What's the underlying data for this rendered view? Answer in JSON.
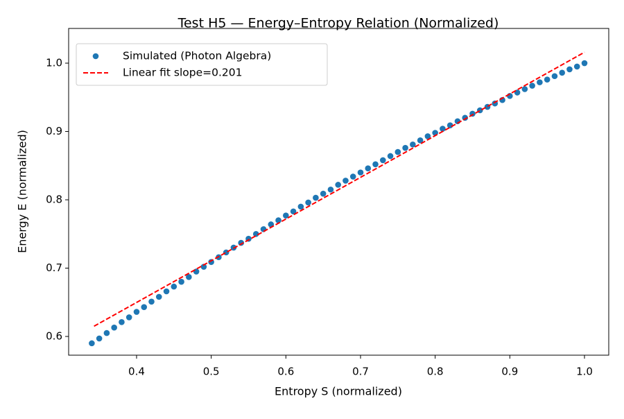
{
  "chart_data": {
    "type": "scatter",
    "title": "Test H5 — Energy–Entropy Relation (Normalized)",
    "x_label": "Entropy S (normalized)",
    "y_label": "Energy E (normalized)",
    "xlim": [
      0.309,
      1.0325
    ],
    "ylim": [
      0.5726,
      1.0508
    ],
    "xticks": [
      0.4,
      0.5,
      0.6,
      0.7,
      0.8,
      0.9,
      {
        "value": 1.0,
        "label": "1.0"
      }
    ],
    "yticks": [
      0.6,
      0.7,
      0.8,
      0.9,
      {
        "value": 1.0,
        "label": "1.0"
      }
    ],
    "grid": false,
    "legend": "upper left",
    "series": [
      {
        "name": "Simulated (Photon Algebra)",
        "color": "#1f77b4",
        "marker": "o",
        "linestyle": "none",
        "x": [
          0.34,
          0.35,
          0.36,
          0.37,
          0.38,
          0.39,
          0.4,
          0.41,
          0.42,
          0.43,
          0.44,
          0.45,
          0.46,
          0.47,
          0.48,
          0.49,
          0.5,
          0.51,
          0.52,
          0.53,
          0.54,
          0.55,
          0.56,
          0.57,
          0.58,
          0.59,
          0.6,
          0.61,
          0.62,
          0.63,
          0.64,
          0.65,
          0.66,
          0.67,
          0.68,
          0.69,
          0.7,
          0.71,
          0.72,
          0.73,
          0.74,
          0.75,
          0.76,
          0.77,
          0.78,
          0.79,
          0.8,
          0.81,
          0.82,
          0.83,
          0.84,
          0.85,
          0.86,
          0.87,
          0.88,
          0.89,
          0.9,
          0.91,
          0.92,
          0.93,
          0.94,
          0.95,
          0.96,
          0.97,
          0.98,
          0.99,
          1.0
        ],
        "values": [
          0.59,
          0.597,
          0.605,
          0.613,
          0.621,
          0.628,
          0.636,
          0.643,
          0.651,
          0.658,
          0.666,
          0.673,
          0.68,
          0.687,
          0.695,
          0.702,
          0.709,
          0.716,
          0.723,
          0.73,
          0.737,
          0.743,
          0.75,
          0.757,
          0.764,
          0.77,
          0.777,
          0.783,
          0.79,
          0.796,
          0.803,
          0.809,
          0.815,
          0.822,
          0.828,
          0.834,
          0.84,
          0.846,
          0.852,
          0.858,
          0.864,
          0.87,
          0.876,
          0.881,
          0.887,
          0.893,
          0.898,
          0.904,
          0.909,
          0.915,
          0.92,
          0.926,
          0.931,
          0.936,
          0.941,
          0.946,
          0.952,
          0.957,
          0.962,
          0.967,
          0.972,
          0.976,
          0.981,
          0.986,
          0.991,
          0.995,
          1.0
        ]
      },
      {
        "name": "Linear fit slope=0.201",
        "color": "#ff0000",
        "marker": "none",
        "linestyle": "--",
        "x": [
          0.343,
          1.0
        ],
        "values": [
          0.615,
          1.016
        ]
      }
    ]
  }
}
